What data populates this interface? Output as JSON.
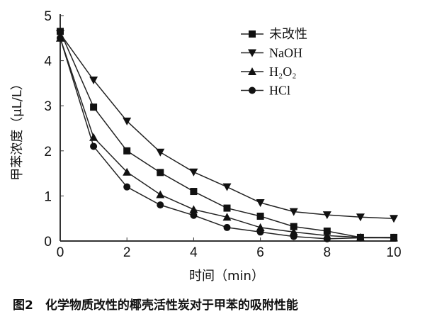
{
  "chart_data": {
    "type": "line",
    "xlabel": "时间（min）",
    "ylabel": "甲苯浓度（μL/L）",
    "caption": "图2　化学物质改性的椰壳活性炭对于甲苯的吸附性能",
    "xlim": [
      0,
      10
    ],
    "ylim": [
      0,
      5
    ],
    "xticks": [
      0,
      2,
      4,
      6,
      8,
      10
    ],
    "yticks": [
      0,
      1,
      2,
      3,
      4,
      5
    ],
    "grid": false,
    "legend_position": "top-right",
    "x": [
      0,
      1,
      2,
      3,
      4,
      5,
      6,
      7,
      8,
      9,
      10
    ],
    "series": [
      {
        "name": "未改性",
        "marker": "square",
        "values": [
          4.65,
          2.97,
          2.0,
          1.52,
          1.1,
          0.73,
          0.55,
          0.32,
          0.22,
          0.08,
          0.08
        ]
      },
      {
        "name": "NaOH",
        "marker": "triangle-down",
        "values": [
          4.6,
          3.57,
          2.66,
          1.97,
          1.53,
          1.2,
          0.85,
          0.65,
          0.58,
          0.53,
          0.5
        ]
      },
      {
        "name": "H₂O₂",
        "marker": "triangle-up",
        "values": [
          4.5,
          2.3,
          1.53,
          1.03,
          0.7,
          0.53,
          0.3,
          0.2,
          0.12,
          0.08,
          0.07
        ]
      },
      {
        "name": "HCl",
        "marker": "circle",
        "values": [
          4.5,
          2.1,
          1.2,
          0.8,
          0.57,
          0.3,
          0.2,
          0.1,
          0.05,
          0.07,
          0.07
        ]
      }
    ]
  }
}
